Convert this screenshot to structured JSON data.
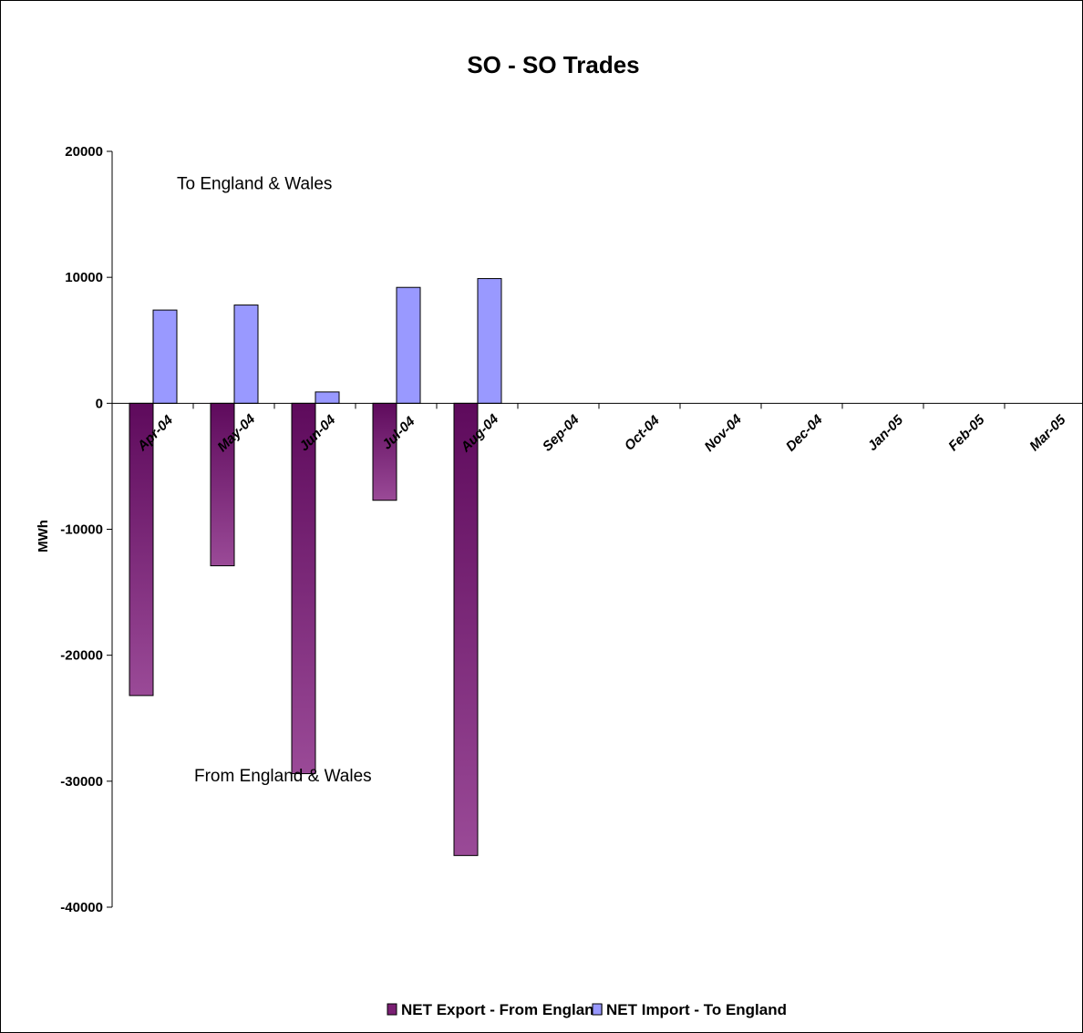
{
  "chart_data": {
    "type": "bar",
    "title": "SO - SO Trades",
    "ylabel": "MWh",
    "xlabel": "",
    "ylim": [
      -40000,
      20000
    ],
    "yticks": [
      20000,
      10000,
      0,
      -10000,
      -20000,
      -30000,
      -40000
    ],
    "categories": [
      "Apr-04",
      "May-04",
      "Jun-04",
      "Jul-04",
      "Aug-04",
      "Sep-04",
      "Oct-04",
      "Nov-04",
      "Dec-04",
      "Jan-05",
      "Feb-05",
      "Mar-05"
    ],
    "series": [
      {
        "name": "NET Export  - From England",
        "color": "#7a1f73",
        "values": [
          -23200,
          -12900,
          -29400,
          -7700,
          -35900,
          null,
          null,
          null,
          null,
          null,
          null,
          null
        ]
      },
      {
        "name": "NET Import - To England",
        "color": "#9999ff",
        "values": [
          7400,
          7800,
          900,
          9200,
          9900,
          null,
          null,
          null,
          null,
          null,
          null,
          null
        ]
      }
    ],
    "annotations": [
      {
        "text": "To England & Wales",
        "x": "Apr-04",
        "y": 17500
      },
      {
        "text": "From England & Wales",
        "x": "May-04",
        "y": -29500
      }
    ],
    "legend": "bottom-center",
    "grid": false
  }
}
